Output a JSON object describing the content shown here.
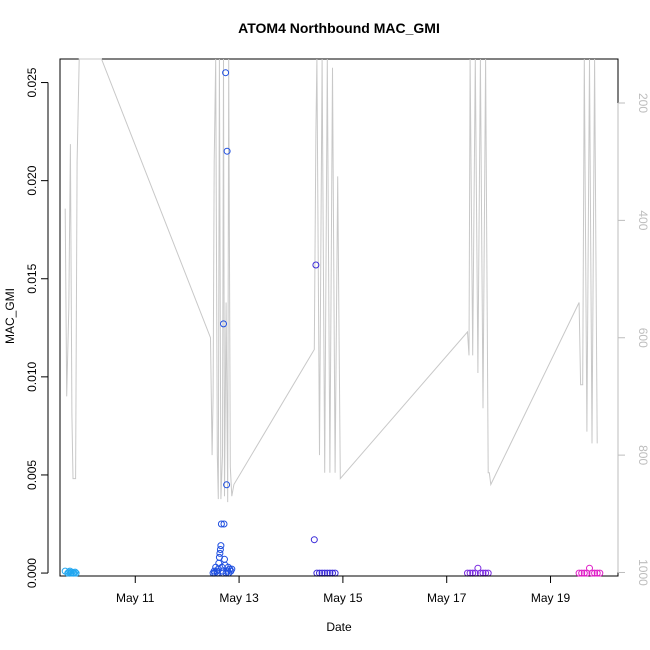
{
  "chart_data": {
    "type": "scatter",
    "title": "ATOM4 Northbound MAC_GMI",
    "xlabel": "Date",
    "ylabel": "MAC_GMI",
    "x_ticks": [
      "May 11",
      "May 13",
      "May 15",
      "May 17",
      "May 19"
    ],
    "x_tick_days": [
      11,
      13,
      15,
      17,
      19
    ],
    "xlim": [
      9.55,
      20.3
    ],
    "ylim": [
      -0.00015,
      0.0262
    ],
    "y_ticks": [
      "0.000",
      "0.005",
      "0.010",
      "0.015",
      "0.020",
      "0.025"
    ],
    "y_tick_values": [
      0.0,
      0.005,
      0.01,
      0.015,
      0.02,
      0.025
    ],
    "right_axis": {
      "ticks": [
        "200",
        "400",
        "600",
        "800",
        "1000"
      ],
      "values": [
        200,
        400,
        600,
        800,
        1000
      ],
      "ylim": [
        1006,
        125
      ],
      "color": "#bdbdbd"
    },
    "grid": false,
    "legend": "none",
    "series": [
      {
        "color": "#22a7f0",
        "points": [
          [
            9.65,
            0.0001
          ],
          [
            9.7,
            0.0
          ],
          [
            9.72,
            5e-05
          ],
          [
            9.74,
            0.0001
          ],
          [
            9.76,
            0.0
          ],
          [
            9.78,
            5e-05
          ],
          [
            9.8,
            0.0
          ],
          [
            9.82,
            0.0
          ],
          [
            9.84,
            5e-05
          ],
          [
            9.86,
            0.0
          ]
        ]
      },
      {
        "color": "#1f4fe0",
        "points": [
          [
            12.5,
            0.0
          ],
          [
            12.52,
            0.0001
          ],
          [
            12.53,
            0.0
          ],
          [
            12.55,
            0.0003
          ],
          [
            12.57,
            0.0001
          ],
          [
            12.58,
            0.0
          ],
          [
            12.6,
            0.0002
          ],
          [
            12.61,
            0.0005
          ],
          [
            12.62,
            0.0008
          ],
          [
            12.63,
            0.001
          ],
          [
            12.64,
            0.0012
          ],
          [
            12.65,
            0.0014
          ],
          [
            12.66,
            0.0025
          ],
          [
            12.67,
            0.0003
          ],
          [
            12.68,
            0.0001
          ],
          [
            12.69,
            0.0
          ],
          [
            12.7,
            0.0127
          ],
          [
            12.71,
            0.0025
          ],
          [
            12.72,
            0.0007
          ],
          [
            12.73,
            0.0004
          ],
          [
            12.74,
            0.0255
          ],
          [
            12.75,
            0.0
          ],
          [
            12.76,
            0.0045
          ],
          [
            12.77,
            0.0215
          ],
          [
            12.78,
            0.0001
          ],
          [
            12.79,
            0.0003
          ],
          [
            12.8,
            0.0
          ],
          [
            12.82,
            0.0002
          ],
          [
            12.84,
            0.0001
          ],
          [
            12.86,
            0.0002
          ]
        ]
      },
      {
        "color": "#3b2bd9",
        "points": [
          [
            14.45,
            0.0017
          ],
          [
            14.48,
            0.0157
          ],
          [
            14.5,
            0.0
          ],
          [
            14.55,
            0.0
          ],
          [
            14.6,
            0.0
          ],
          [
            14.65,
            0.0
          ],
          [
            14.7,
            0.0
          ],
          [
            14.75,
            0.0
          ],
          [
            14.8,
            0.0
          ],
          [
            14.85,
            0.0
          ]
        ]
      },
      {
        "color": "#7a2ae0",
        "points": [
          [
            17.4,
            0.0
          ],
          [
            17.45,
            0.0
          ],
          [
            17.5,
            0.0
          ],
          [
            17.55,
            0.0
          ],
          [
            17.6,
            0.00025
          ],
          [
            17.65,
            0.0
          ],
          [
            17.7,
            0.0
          ],
          [
            17.75,
            0.0
          ],
          [
            17.8,
            0.0
          ]
        ]
      },
      {
        "color": "#e020c8",
        "points": [
          [
            19.55,
            0.0
          ],
          [
            19.6,
            0.0
          ],
          [
            19.65,
            0.0
          ],
          [
            19.7,
            0.0
          ],
          [
            19.75,
            0.00025
          ],
          [
            19.8,
            0.0
          ],
          [
            19.85,
            0.0
          ],
          [
            19.9,
            0.0
          ],
          [
            19.95,
            0.0
          ]
        ]
      }
    ],
    "secondary_line": {
      "color": "#c8c8c8",
      "points": [
        [
          9.65,
          380
        ],
        [
          9.68,
          700
        ],
        [
          9.72,
          550
        ],
        [
          9.75,
          270
        ],
        [
          9.78,
          730
        ],
        [
          9.8,
          840
        ],
        [
          9.85,
          840
        ],
        [
          9.88,
          300
        ],
        [
          9.92,
          125
        ],
        [
          10.35,
          125
        ],
        [
          12.45,
          600
        ],
        [
          12.48,
          800
        ],
        [
          12.5,
          700
        ],
        [
          12.52,
          300
        ],
        [
          12.55,
          125
        ],
        [
          12.58,
          800
        ],
        [
          12.6,
          875
        ],
        [
          12.62,
          125
        ],
        [
          12.65,
          875
        ],
        [
          12.68,
          800
        ],
        [
          12.7,
          125
        ],
        [
          12.72,
          870
        ],
        [
          12.75,
          540
        ],
        [
          12.78,
          880
        ],
        [
          12.8,
          125
        ],
        [
          12.83,
          820
        ],
        [
          12.86,
          870
        ],
        [
          12.9,
          850
        ],
        [
          14.45,
          620
        ],
        [
          14.48,
          250
        ],
        [
          14.5,
          125
        ],
        [
          14.55,
          800
        ],
        [
          14.6,
          125
        ],
        [
          14.65,
          830
        ],
        [
          14.7,
          125
        ],
        [
          14.75,
          830
        ],
        [
          14.8,
          140
        ],
        [
          14.85,
          830
        ],
        [
          14.9,
          325
        ],
        [
          14.95,
          840
        ],
        [
          17.4,
          590
        ],
        [
          17.43,
          630
        ],
        [
          17.45,
          125
        ],
        [
          17.5,
          630
        ],
        [
          17.55,
          125
        ],
        [
          17.6,
          660
        ],
        [
          17.65,
          125
        ],
        [
          17.7,
          720
        ],
        [
          17.75,
          125
        ],
        [
          17.8,
          830
        ],
        [
          17.82,
          830
        ],
        [
          17.85,
          850
        ],
        [
          19.55,
          540
        ],
        [
          19.58,
          680
        ],
        [
          19.62,
          680
        ],
        [
          19.65,
          125
        ],
        [
          19.7,
          760
        ],
        [
          19.75,
          125
        ],
        [
          19.8,
          780
        ],
        [
          19.85,
          125
        ],
        [
          19.9,
          780
        ]
      ]
    }
  }
}
